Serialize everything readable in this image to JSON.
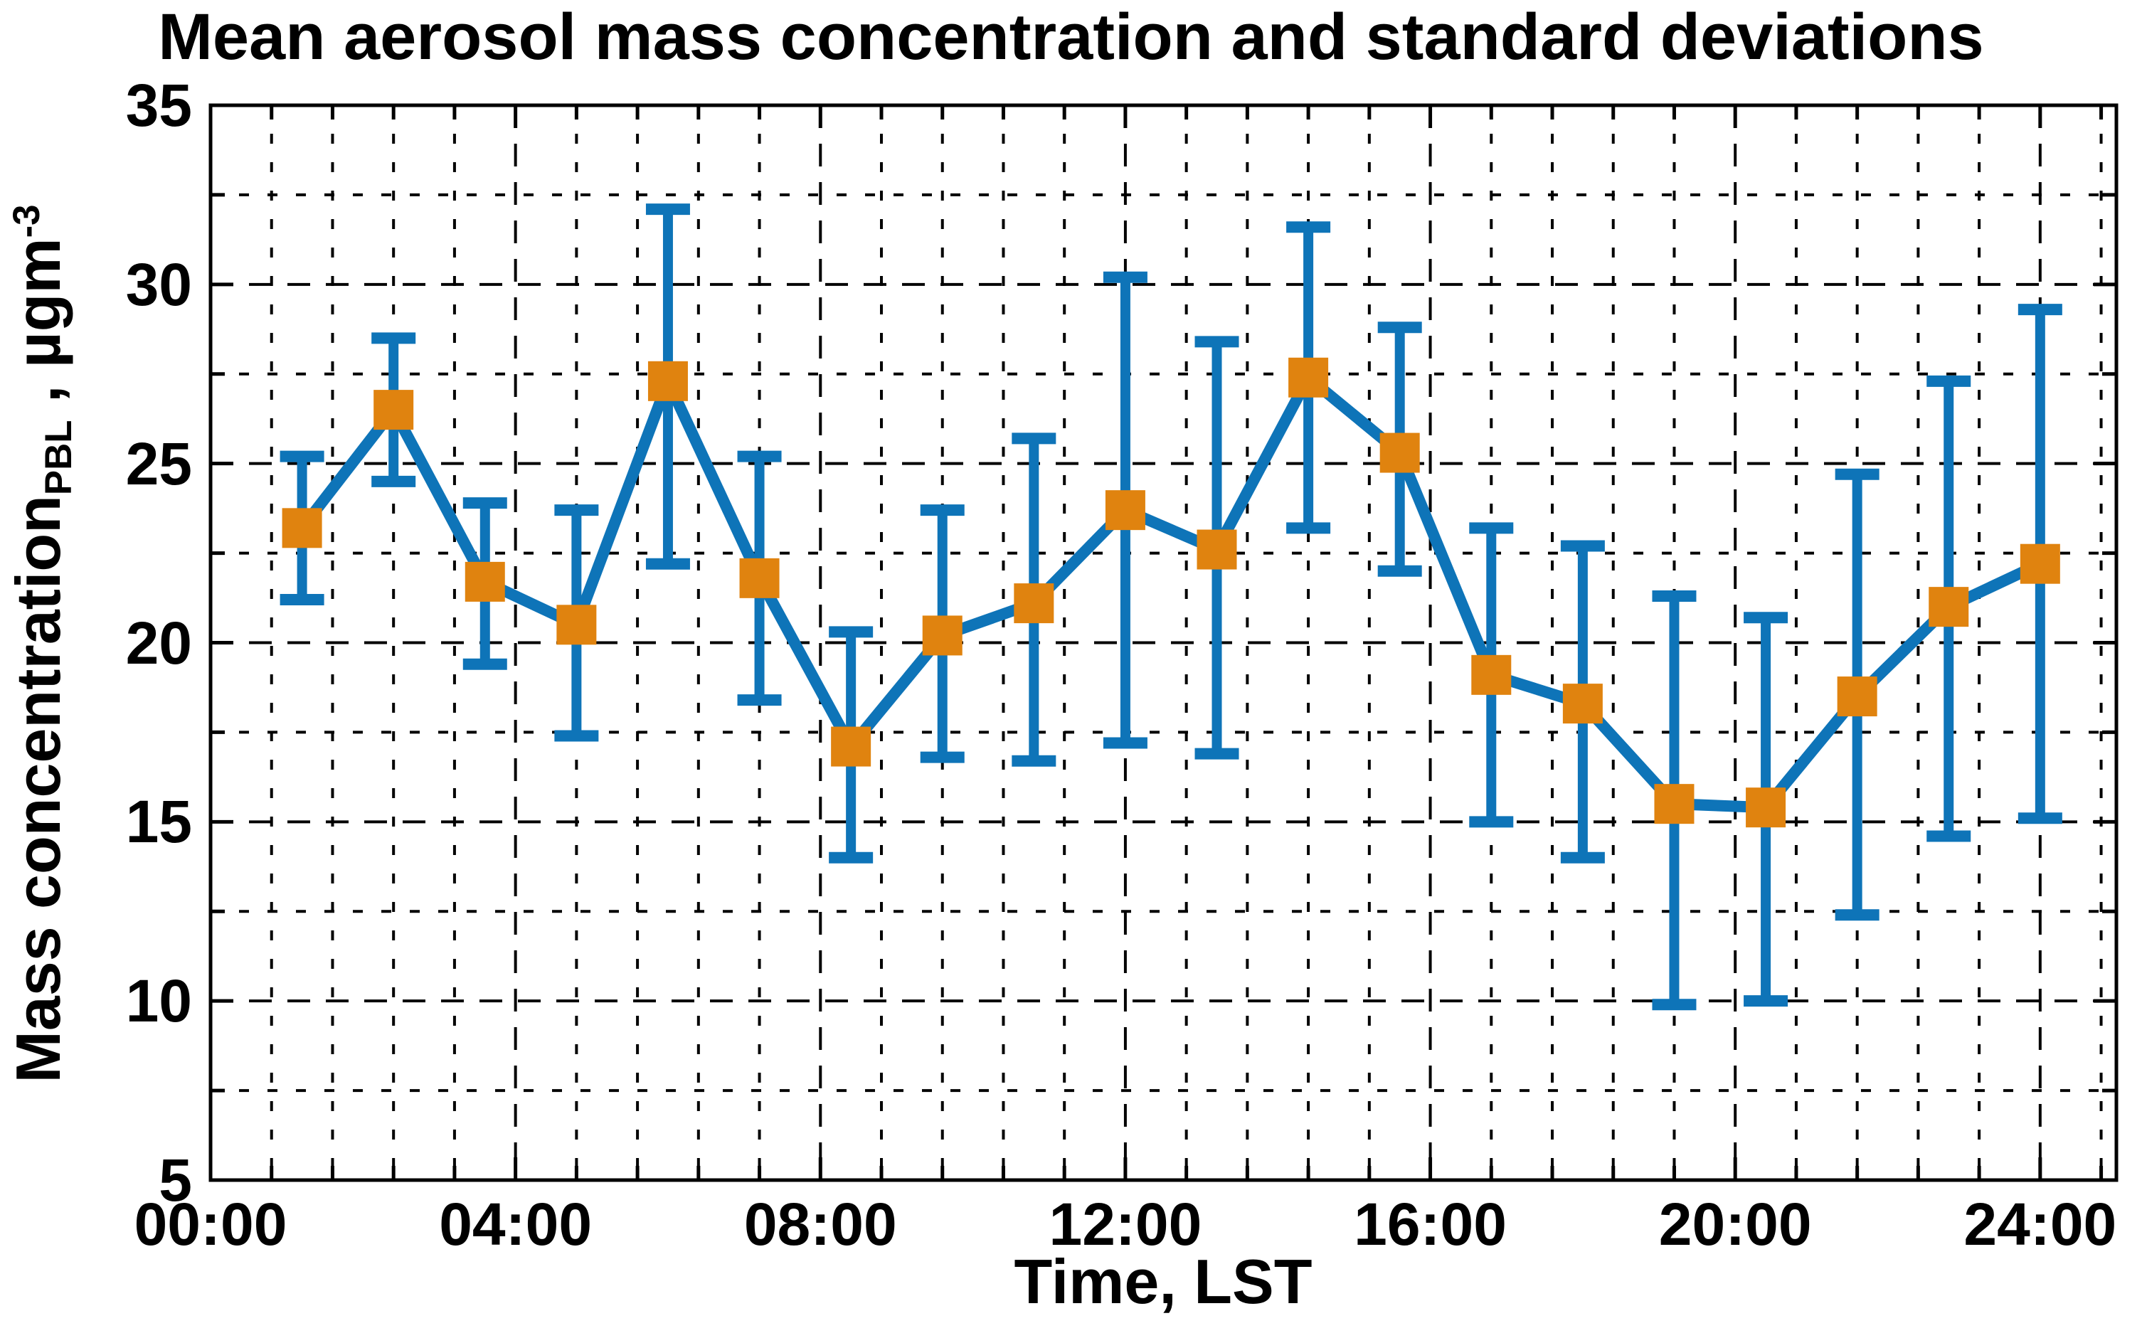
{
  "chart_data": {
    "type": "line",
    "title": "Mean aerosol mass concentration and standard deviations",
    "xlabel": "Time, LST",
    "ylabel": {
      "text": "Mass concentration",
      "subscript": "PBL",
      "separator": " , ",
      "unit": "µgm",
      "superscript": "-3"
    },
    "xlim_hours": [
      0,
      25
    ],
    "ylim": [
      5,
      35
    ],
    "x_major_ticks": [
      {
        "hours": 0,
        "label": "00:00"
      },
      {
        "hours": 4,
        "label": "04:00"
      },
      {
        "hours": 8,
        "label": "08:00"
      },
      {
        "hours": 12,
        "label": "12:00"
      },
      {
        "hours": 16,
        "label": "16:00"
      },
      {
        "hours": 20,
        "label": "20:00"
      },
      {
        "hours": 24,
        "label": "24:00"
      }
    ],
    "x_minor_step_hours": 0.8,
    "y_major_ticks": [
      5,
      10,
      15,
      20,
      25,
      30,
      35
    ],
    "y_minor_step": 2.5,
    "grid": {
      "shown": true,
      "style": "dashed",
      "color": "#000000",
      "major_and_minor": true
    },
    "legend": {
      "shown": false
    },
    "series": [
      {
        "name": "mean aerosol mass concentration with standard deviation error bars",
        "line_color": "#0e74b8",
        "marker": "square",
        "marker_color": "#e0830f",
        "points": [
          {
            "time": "01:12",
            "hours": 1.2,
            "mean": 23.2,
            "lower": 21.2,
            "upper": 25.2
          },
          {
            "time": "02:24",
            "hours": 2.4,
            "mean": 26.5,
            "lower": 24.5,
            "upper": 28.5
          },
          {
            "time": "03:36",
            "hours": 3.6,
            "mean": 21.7,
            "lower": 19.4,
            "upper": 23.9
          },
          {
            "time": "04:48",
            "hours": 4.8,
            "mean": 20.5,
            "lower": 17.4,
            "upper": 23.7
          },
          {
            "time": "06:00",
            "hours": 6.0,
            "mean": 27.3,
            "lower": 22.2,
            "upper": 32.1
          },
          {
            "time": "07:12",
            "hours": 7.2,
            "mean": 21.8,
            "lower": 18.4,
            "upper": 25.2
          },
          {
            "time": "08:24",
            "hours": 8.4,
            "mean": 17.1,
            "lower": 14.0,
            "upper": 20.3
          },
          {
            "time": "09:36",
            "hours": 9.6,
            "mean": 20.2,
            "lower": 16.8,
            "upper": 23.7
          },
          {
            "time": "10:48",
            "hours": 10.8,
            "mean": 21.1,
            "lower": 16.7,
            "upper": 25.7
          },
          {
            "time": "12:00",
            "hours": 12.0,
            "mean": 23.7,
            "lower": 17.2,
            "upper": 30.2
          },
          {
            "time": "13:12",
            "hours": 13.2,
            "mean": 22.6,
            "lower": 16.9,
            "upper": 28.4
          },
          {
            "time": "14:24",
            "hours": 14.4,
            "mean": 27.4,
            "lower": 23.2,
            "upper": 31.6
          },
          {
            "time": "15:36",
            "hours": 15.6,
            "mean": 25.3,
            "lower": 22.0,
            "upper": 28.8
          },
          {
            "time": "16:48",
            "hours": 16.8,
            "mean": 19.1,
            "lower": 15.0,
            "upper": 23.2
          },
          {
            "time": "18:00",
            "hours": 18.0,
            "mean": 18.3,
            "lower": 14.0,
            "upper": 22.7
          },
          {
            "time": "19:12",
            "hours": 19.2,
            "mean": 15.5,
            "lower": 9.9,
            "upper": 21.3
          },
          {
            "time": "20:24",
            "hours": 20.4,
            "mean": 15.4,
            "lower": 10.0,
            "upper": 20.7
          },
          {
            "time": "21:36",
            "hours": 21.6,
            "mean": 18.5,
            "lower": 12.4,
            "upper": 24.7
          },
          {
            "time": "22:48",
            "hours": 22.8,
            "mean": 21.0,
            "lower": 14.6,
            "upper": 27.3
          },
          {
            "time": "24:00",
            "hours": 24.0,
            "mean": 22.2,
            "lower": 15.1,
            "upper": 29.3
          }
        ]
      }
    ],
    "colors": {
      "axes": "#000000",
      "background": "#ffffff",
      "errorbar_blue": "#0e74b8",
      "marker_orange": "#e0830f"
    }
  }
}
